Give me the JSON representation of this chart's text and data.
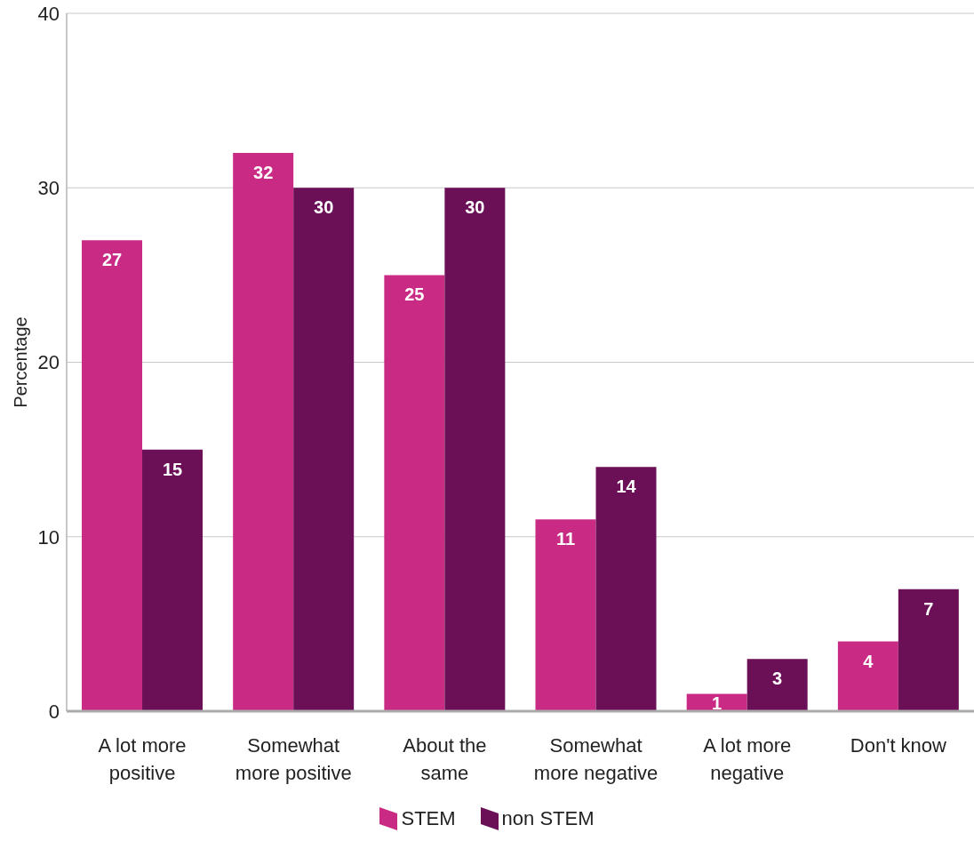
{
  "chart_data": {
    "type": "bar",
    "ylabel": "Percentage",
    "categories": [
      "A lot more positive",
      "Somewhat more positive",
      "About the same",
      "Somewhat more negative",
      "A lot more negative",
      "Don't know"
    ],
    "series": [
      {
        "name": "STEM",
        "color": "#c92b84",
        "values": [
          27,
          32,
          25,
          11,
          1,
          4
        ]
      },
      {
        "name": "non STEM",
        "color": "#6b1057",
        "values": [
          15,
          30,
          30,
          14,
          3,
          7
        ]
      }
    ],
    "ylim": [
      0,
      40
    ],
    "yticks": [
      0,
      10,
      20,
      30,
      40
    ],
    "grid": "y",
    "legend": "bottom",
    "data_labels": true
  }
}
